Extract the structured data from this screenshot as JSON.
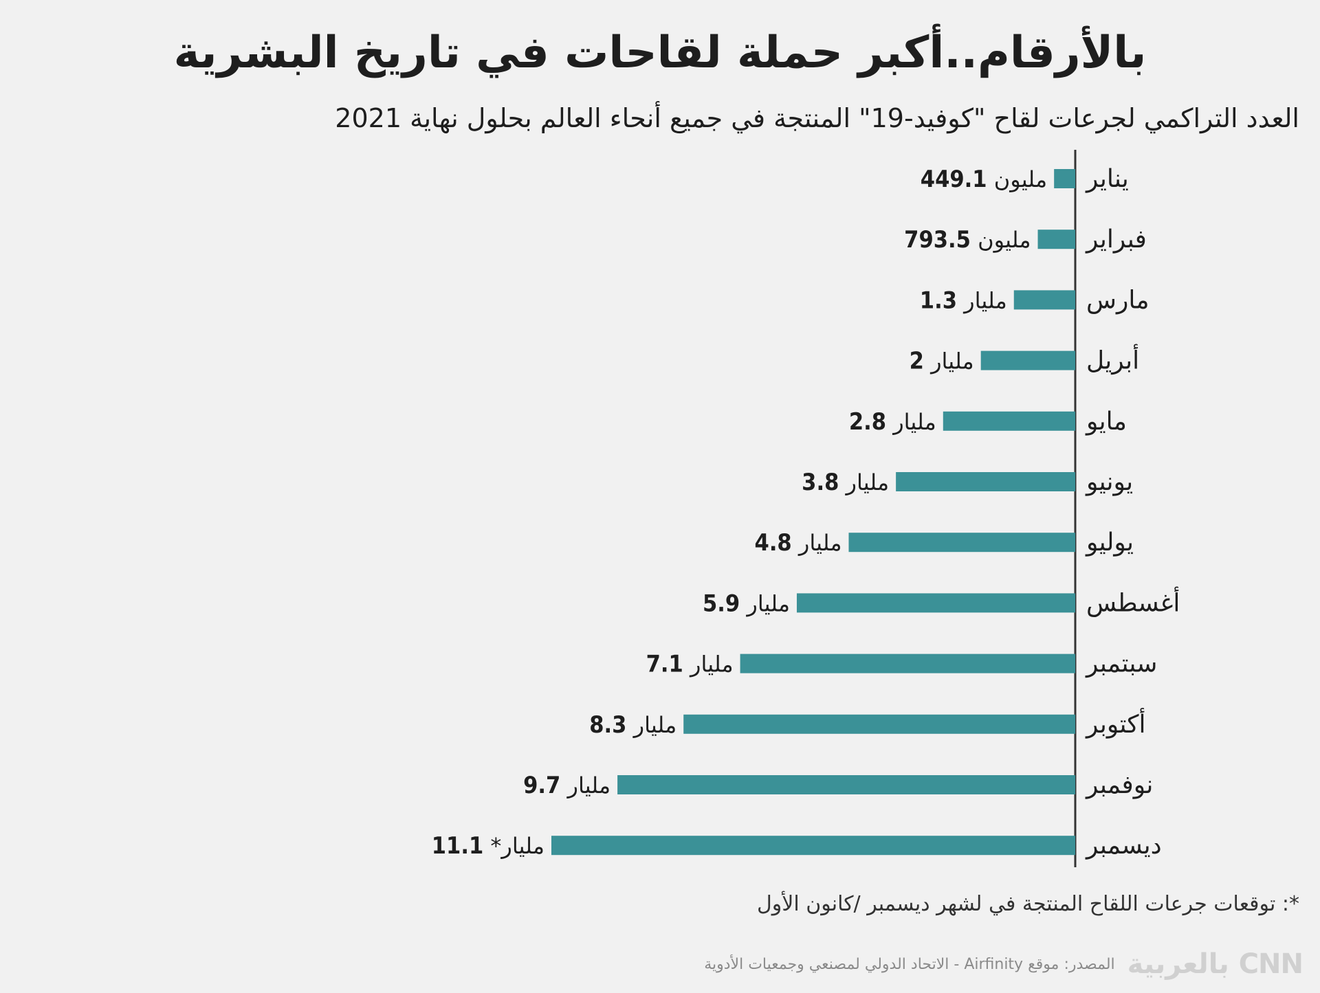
{
  "title": "بالأرقام..أكبر حملة لقاحات في تاريخ البشرية",
  "subtitle": "العدد التراكمي لجرعات لقاح \"كوفيد-19\" المنتجة في جميع أنحاء العالم بحلول نهاية 2021",
  "footnote": "*: توقعات جرعات اللقاح المنتجة في لشهر ديسمبر /كانون الأول",
  "source": "المصدر: موقع  Airfinity - الاتحاد الدولي لمصنعي وجمعيات الأدوية",
  "logo": "CNN بالعربية",
  "colors": {
    "bar": "#3b9197",
    "background": "#f1f1f1",
    "text": "#1e1e1e"
  },
  "chart_data": {
    "type": "bar",
    "orientation": "horizontal",
    "direction": "right-to-left",
    "unit": "billion doses",
    "categories": [
      "يناير",
      "فبراير",
      "مارس",
      "أبريل",
      "مايو",
      "يونيو",
      "يوليو",
      "أغسطس",
      "سبتمبر",
      "أكتوبر",
      "نوفمبر",
      "ديسمبر"
    ],
    "values": [
      0.4491,
      0.7935,
      1.3,
      2,
      2.8,
      3.8,
      4.8,
      5.9,
      7.1,
      8.3,
      9.7,
      11.1
    ],
    "labels": [
      {
        "num": "449.1",
        "unit": "مليون"
      },
      {
        "num": "793.5",
        "unit": "مليون"
      },
      {
        "num": "1.3",
        "unit": "مليار"
      },
      {
        "num": "2",
        "unit": "مليار"
      },
      {
        "num": "2.8",
        "unit": "مليار"
      },
      {
        "num": "3.8",
        "unit": "مليار"
      },
      {
        "num": "4.8",
        "unit": "مليار"
      },
      {
        "num": "5.9",
        "unit": "مليار"
      },
      {
        "num": "7.1",
        "unit": "مليار"
      },
      {
        "num": "8.3",
        "unit": "مليار"
      },
      {
        "num": "9.7",
        "unit": "مليار"
      },
      {
        "num": "11.1",
        "unit": "مليار*"
      }
    ],
    "xlim": [
      0,
      11.1
    ],
    "grid": false,
    "legend": "none"
  }
}
